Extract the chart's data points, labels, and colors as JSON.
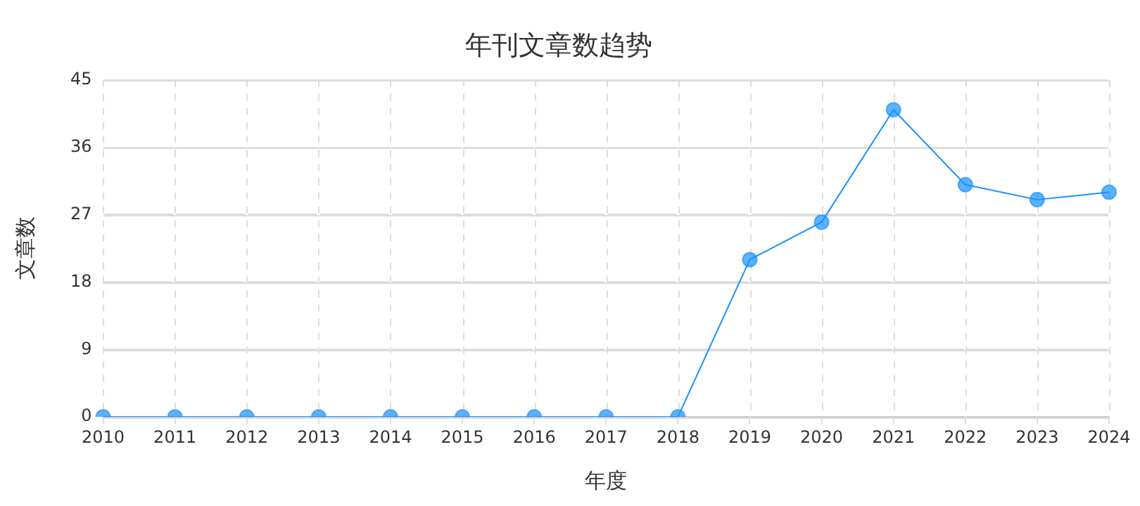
{
  "chart_data": {
    "type": "line",
    "title": "年刊文章数趋势",
    "xlabel": "年度",
    "ylabel": "文章数",
    "categories": [
      "2010",
      "2011",
      "2012",
      "2013",
      "2014",
      "2015",
      "2016",
      "2017",
      "2018",
      "2019",
      "2020",
      "2021",
      "2022",
      "2023",
      "2024"
    ],
    "series": [
      {
        "color": "#1890ff",
        "values": [
          0,
          0,
          0,
          0,
          0,
          0,
          0,
          0,
          0,
          21,
          26,
          41,
          31,
          29,
          30
        ]
      }
    ],
    "ylim": [
      0,
      45
    ],
    "yticks": [
      0,
      9,
      18,
      27,
      36,
      45
    ],
    "grid": true,
    "legend": false,
    "marker": "circle",
    "line_style": "solid"
  }
}
